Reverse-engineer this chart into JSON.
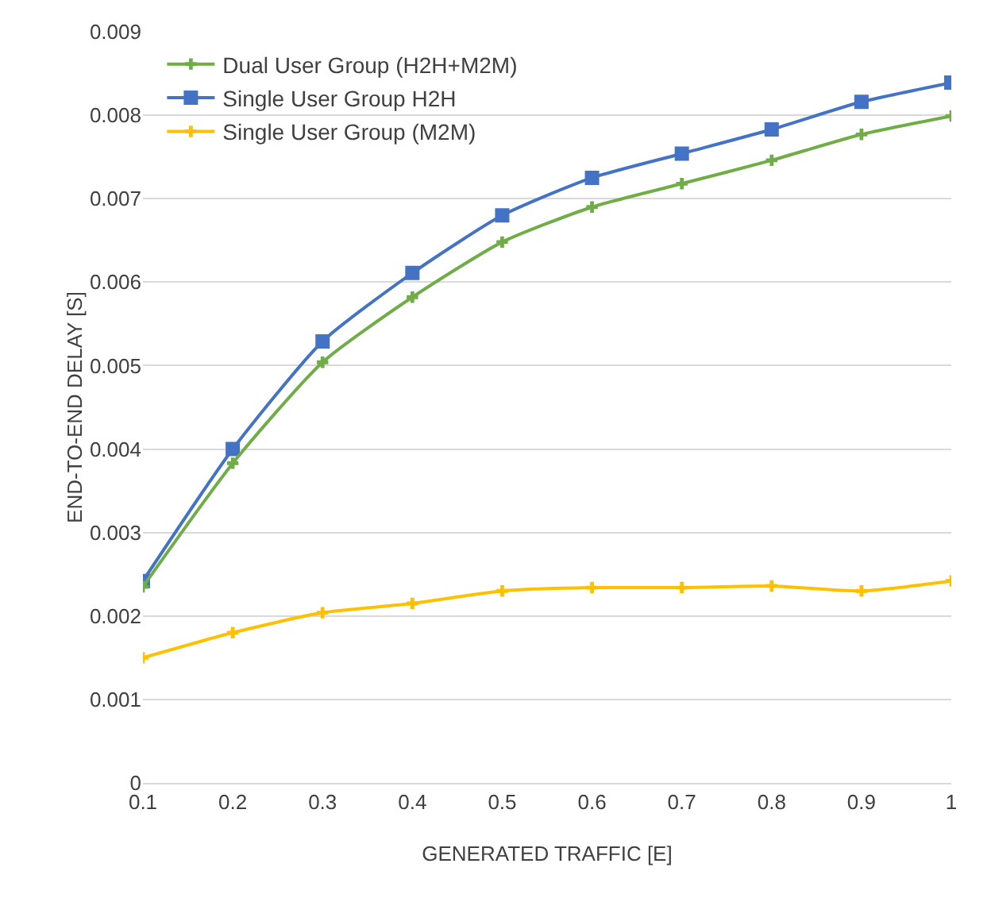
{
  "chart_data": {
    "type": "line",
    "xlabel": "GENERATED TRAFFIC [E]",
    "ylabel": "END-TO-END DELAY [S]",
    "x": [
      0.1,
      0.2,
      0.3,
      0.4,
      0.5,
      0.6,
      0.7,
      0.8,
      0.9,
      1
    ],
    "series": [
      {
        "name": "Dual User Group (H2H+M2M)",
        "color": "#70ad47",
        "marker": "cross",
        "values": [
          0.00235,
          0.00383,
          0.00504,
          0.00582,
          0.00648,
          0.0069,
          0.00718,
          0.00746,
          0.00777,
          0.00799
        ]
      },
      {
        "name": "Single User Group H2H",
        "color": "#4472c4",
        "marker": "square",
        "values": [
          0.00242,
          0.004,
          0.00529,
          0.00611,
          0.0068,
          0.00725,
          0.00754,
          0.00783,
          0.00816,
          0.00839
        ]
      },
      {
        "name": "Single User Group (M2M)",
        "color": "#ffc000",
        "marker": "cross",
        "values": [
          0.0015,
          0.0018,
          0.00204,
          0.00215,
          0.0023,
          0.00234,
          0.00234,
          0.00236,
          0.0023,
          0.00242
        ]
      }
    ],
    "xlim": [
      0.1,
      1
    ],
    "xticks": [
      0.1,
      0.2,
      0.3,
      0.4,
      0.5,
      0.6,
      0.7,
      0.8,
      0.9,
      1
    ],
    "ylim": [
      0,
      0.009
    ],
    "yticks": [
      0,
      0.001,
      0.002,
      0.003,
      0.004,
      0.005,
      0.006,
      0.007,
      0.008,
      0.009
    ],
    "grid": "y",
    "legend": "top left",
    "line_style": "solid"
  }
}
